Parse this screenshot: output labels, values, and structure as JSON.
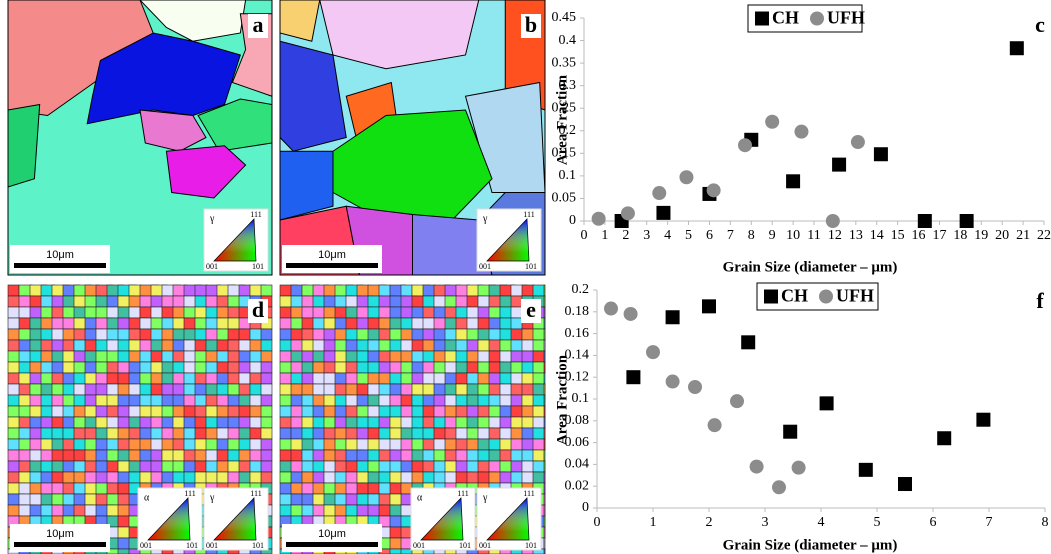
{
  "chart_data": [
    {
      "type": "scatter",
      "label": "c",
      "x_label": "Grain Size (diameter – μm)",
      "y_label": "Area Fraction",
      "xlim": [
        0,
        22
      ],
      "xticks": [
        0,
        1,
        2,
        3,
        4,
        5,
        6,
        7,
        8,
        9,
        10,
        11,
        12,
        13,
        14,
        15,
        16,
        17,
        18,
        19,
        20,
        21,
        22
      ],
      "ylim": [
        0,
        0.45
      ],
      "yticks": [
        0,
        0.05,
        0.1,
        0.15,
        0.2,
        0.25,
        0.3,
        0.35,
        0.4,
        0.45
      ],
      "grid": false,
      "series": [
        {
          "name": "CH",
          "color": "#000000",
          "marker": "square",
          "x": [
            1.8,
            3.8,
            6.0,
            8.0,
            10.0,
            12.2,
            14.2,
            16.3,
            18.3,
            20.7
          ],
          "values": [
            0,
            0.018,
            0.06,
            0.18,
            0.088,
            0.125,
            0.148,
            0,
            0,
            0.383
          ]
        },
        {
          "name": "UFH",
          "color": "#8c8c8c",
          "marker": "circle",
          "x": [
            0.7,
            2.1,
            3.6,
            4.9,
            6.2,
            7.7,
            9.0,
            10.4,
            11.9,
            13.1
          ],
          "values": [
            0.005,
            0.017,
            0.062,
            0.097,
            0.068,
            0.168,
            0.22,
            0.198,
            0,
            0.175
          ]
        }
      ]
    },
    {
      "type": "scatter",
      "label": "f",
      "x_label": "Grain Size (diameter – μm)",
      "y_label": "Area Fraction",
      "xlim": [
        0,
        8
      ],
      "xticks": [
        0,
        1,
        2,
        3,
        4,
        5,
        6,
        7,
        8
      ],
      "ylim": [
        0,
        0.2
      ],
      "yticks": [
        0,
        0.02,
        0.04,
        0.06,
        0.08,
        0.1,
        0.12,
        0.14,
        0.16,
        0.18,
        0.2
      ],
      "grid": false,
      "series": [
        {
          "name": "CH",
          "color": "#000000",
          "marker": "square",
          "x": [
            0.65,
            1.35,
            2.0,
            2.7,
            3.45,
            4.1,
            4.8,
            5.5,
            6.2,
            6.9
          ],
          "values": [
            0.12,
            0.175,
            0.185,
            0.152,
            0.07,
            0.096,
            0.035,
            0.022,
            0.064,
            0.081
          ]
        },
        {
          "name": "UFH",
          "color": "#8c8c8c",
          "marker": "circle",
          "x": [
            0.25,
            0.6,
            1.0,
            1.35,
            1.75,
            2.1,
            2.5,
            2.85,
            3.25,
            3.6
          ],
          "values": [
            0.183,
            0.178,
            0.143,
            0.116,
            0.111,
            0.076,
            0.098,
            0.038,
            0.019,
            0.037
          ]
        }
      ]
    }
  ],
  "images": [
    {
      "label": "a",
      "scale_bar": "10μm",
      "keys": [
        {
          "phase": "γ",
          "corners": [
            "111",
            "001",
            "101"
          ]
        }
      ]
    },
    {
      "label": "b",
      "scale_bar": "10μm",
      "keys": [
        {
          "phase": "γ",
          "corners": [
            "111",
            "001",
            "101"
          ]
        }
      ]
    },
    {
      "label": "d",
      "scale_bar": "10μm",
      "keys": [
        {
          "phase": "α",
          "corners": [
            "111",
            "001",
            "101"
          ]
        },
        {
          "phase": "γ",
          "corners": [
            "111",
            "001",
            "101"
          ]
        }
      ]
    },
    {
      "label": "e",
      "scale_bar": "10μm",
      "keys": [
        {
          "phase": "α",
          "corners": [
            "111",
            "001",
            "101"
          ]
        },
        {
          "phase": "γ",
          "corners": [
            "111",
            "001",
            "101"
          ]
        }
      ]
    }
  ]
}
